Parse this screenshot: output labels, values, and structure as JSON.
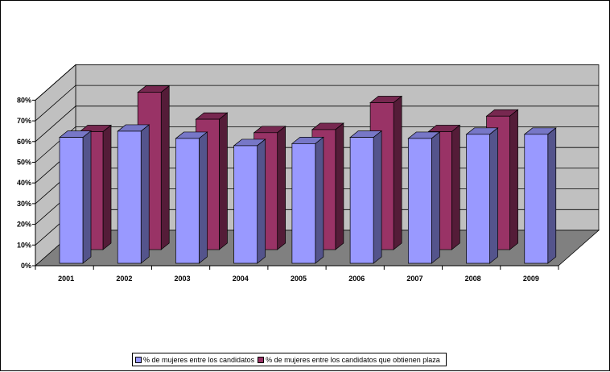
{
  "chart_data": {
    "type": "bar",
    "title": "",
    "xlabel": "",
    "ylabel": "",
    "categories": [
      "2001",
      "2002",
      "2003",
      "2004",
      "2005",
      "2006",
      "2007",
      "2008",
      "2009"
    ],
    "y_ticks": [
      "0%",
      "10%",
      "20%",
      "30%",
      "40%",
      "50%",
      "60%",
      "70%",
      "80%"
    ],
    "ylim": [
      0,
      80
    ],
    "grid": true,
    "legend_position": "bottom",
    "series": [
      {
        "name": "% de mujeres entre los candidatos",
        "color": "#9999FF",
        "values": [
          62,
          65,
          61.5,
          58,
          59,
          62,
          61.5,
          63.5,
          63.5
        ]
      },
      {
        "name": "% de mujeres entre los candidatos que obtienen plaza",
        "color": "#993366",
        "values": [
          57,
          76,
          63,
          56.5,
          58,
          71,
          57,
          64.5,
          null
        ]
      }
    ]
  },
  "colors": {
    "wall": "#C0C0C0",
    "floor": "#808080",
    "gridline": "#000000"
  }
}
